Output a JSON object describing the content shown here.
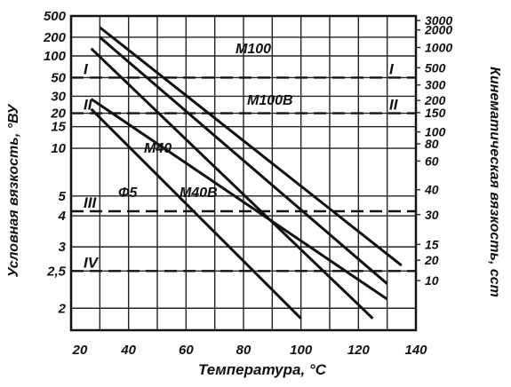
{
  "chart_data": {
    "type": "line",
    "xlabel": "Температура, °С",
    "ylabel_left": "Условная вязкость, °ВУ",
    "ylabel_right": "Кинематическая вязкость, сст",
    "x_ticks": [
      20,
      40,
      60,
      80,
      100,
      120,
      140
    ],
    "y_left_ticks": [
      "500",
      "200",
      "100",
      "50",
      "30",
      "20",
      "15",
      "10",
      "5",
      "4",
      "3",
      "2,5",
      "2"
    ],
    "y_right_ticks": [
      "3000",
      "2000",
      "1000",
      "500",
      "300",
      "200",
      "150",
      "100",
      "80",
      "60",
      "40",
      "30",
      "20",
      "15",
      "10"
    ],
    "xlim": [
      20,
      140
    ],
    "ylim_left": [
      1.8,
      500
    ],
    "y_scale": "log-log",
    "grid": true,
    "series": [
      {
        "name": "М100",
        "x": [
          30,
          135
        ],
        "y": [
          300,
          2.6
        ]
      },
      {
        "name": "М100В",
        "x": [
          30,
          130
        ],
        "y": [
          200,
          2.3
        ]
      },
      {
        "name": "М40",
        "x": [
          27,
          125
        ],
        "y": [
          130,
          1.9
        ]
      },
      {
        "name": "М40В",
        "x": [
          27,
          130
        ],
        "y": [
          28,
          2.1
        ]
      },
      {
        "name": "Ф5",
        "x": [
          27,
          100
        ],
        "y": [
          22,
          1.9
        ]
      }
    ],
    "reference_lines": [
      {
        "label": "I",
        "y": 50
      },
      {
        "label": "II",
        "y": 20
      },
      {
        "label": "III",
        "y": 4.2
      },
      {
        "label": "IV",
        "y": 2.5
      }
    ]
  }
}
